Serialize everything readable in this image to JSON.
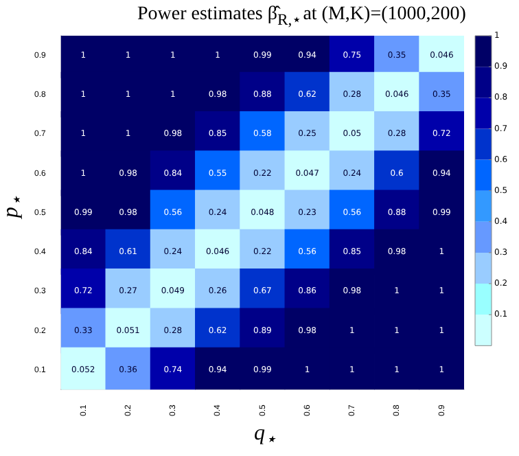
{
  "chart_data": {
    "type": "heatmap",
    "title": "Power estimates β̂$_{R,⋆}$at (M,K)=(1000,200)",
    "xlabel": "q$_{⋆}$",
    "ylabel": "p$_{⋆}$",
    "categories": [
      "0.1",
      "0.2",
      "0.3",
      "0.4",
      "0.5",
      "0.6",
      "0.7",
      "0.8",
      "0.9"
    ],
    "y_categories": [
      "0.9",
      "0.8",
      "0.7",
      "0.6",
      "0.5",
      "0.4",
      "0.3",
      "0.2",
      "0.1"
    ],
    "cells": [
      [
        1,
        1,
        1,
        1,
        0.99,
        0.94,
        0.75,
        0.35,
        0.046
      ],
      [
        1,
        1,
        1,
        0.98,
        0.88,
        0.62,
        0.28,
        0.046,
        0.35
      ],
      [
        1,
        1,
        0.98,
        0.85,
        0.58,
        0.25,
        0.05,
        0.28,
        0.72
      ],
      [
        1,
        0.98,
        0.84,
        0.55,
        0.22,
        0.047,
        0.24,
        0.6,
        0.94
      ],
      [
        0.99,
        0.98,
        0.56,
        0.24,
        0.048,
        0.23,
        0.56,
        0.88,
        0.99
      ],
      [
        0.84,
        0.61,
        0.24,
        0.046,
        0.22,
        0.56,
        0.85,
        0.98,
        1
      ],
      [
        0.72,
        0.27,
        0.049,
        0.26,
        0.67,
        0.86,
        0.98,
        1,
        1
      ],
      [
        0.33,
        0.051,
        0.28,
        0.62,
        0.89,
        0.98,
        1,
        1,
        1
      ],
      [
        0.052,
        0.36,
        0.74,
        0.94,
        0.99,
        1,
        1,
        1,
        1
      ]
    ],
    "clim": [
      0,
      1
    ],
    "cticks": [
      0.1,
      0.2,
      0.3,
      0.4,
      0.5,
      0.6,
      0.7,
      0.8,
      0.9,
      1
    ],
    "data_labels": true
  }
}
